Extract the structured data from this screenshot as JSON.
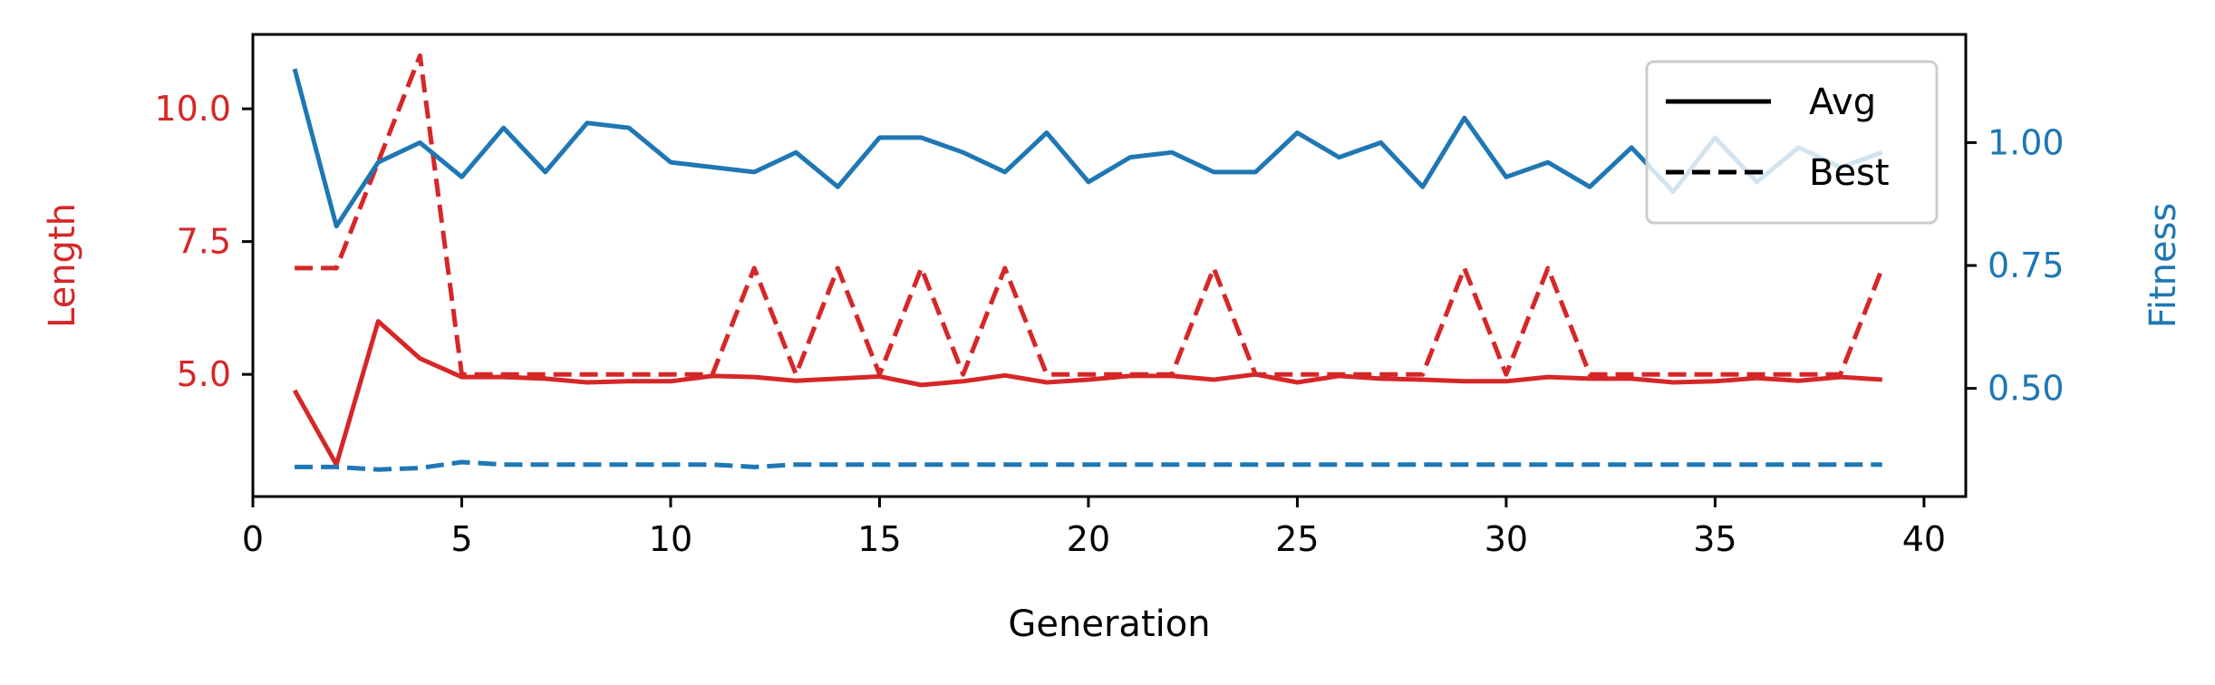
{
  "chart_data": {
    "type": "line",
    "xlabel": "Generation",
    "ylabel_left": "Length",
    "ylabel_right": "Fitness",
    "xlim": [
      0,
      41
    ],
    "ylim_left": [
      2.7,
      11.4
    ],
    "ylim_right": [
      0.28,
      1.22
    ],
    "xticks": [
      0,
      5,
      10,
      15,
      20,
      25,
      30,
      35,
      40
    ],
    "yticks_left": [
      5.0,
      7.5,
      10.0
    ],
    "yticks_right": [
      0.5,
      0.75,
      1.0
    ],
    "ytick_labels_left": [
      "5.0",
      "7.5",
      "10.0"
    ],
    "ytick_labels_right": [
      "0.50",
      "0.75",
      "1.00"
    ],
    "grid": false,
    "legend_position": "upper-right",
    "legend": [
      {
        "label": "Avg",
        "style": "solid"
      },
      {
        "label": "Best",
        "style": "dashed"
      }
    ],
    "colors": {
      "length": "#d62728",
      "fitness": "#1f77b4"
    },
    "x": [
      1,
      2,
      3,
      4,
      5,
      6,
      7,
      8,
      9,
      10,
      11,
      12,
      13,
      14,
      15,
      16,
      17,
      18,
      19,
      20,
      21,
      22,
      23,
      24,
      25,
      26,
      27,
      28,
      29,
      30,
      31,
      32,
      33,
      34,
      35,
      36,
      37,
      38,
      39
    ],
    "series": [
      {
        "axis": "left",
        "color": "length",
        "style": "solid",
        "values": [
          4.7,
          3.3,
          6.0,
          5.3,
          4.95,
          4.95,
          4.92,
          4.85,
          4.87,
          4.87,
          4.97,
          4.95,
          4.88,
          4.92,
          4.96,
          4.8,
          4.87,
          4.98,
          4.85,
          4.9,
          4.97,
          4.97,
          4.9,
          5.0,
          4.85,
          4.97,
          4.92,
          4.9,
          4.87,
          4.87,
          4.95,
          4.92,
          4.92,
          4.85,
          4.87,
          4.93,
          4.88,
          4.95,
          4.9
        ]
      },
      {
        "axis": "left",
        "color": "length",
        "style": "dashed",
        "values": [
          7.0,
          7.0,
          9.0,
          11.0,
          5.0,
          5.0,
          5.0,
          5.0,
          5.0,
          5.0,
          5.0,
          7.0,
          5.0,
          7.0,
          5.0,
          7.0,
          5.0,
          7.0,
          5.0,
          5.0,
          5.0,
          5.0,
          7.0,
          5.0,
          5.0,
          5.0,
          5.0,
          5.0,
          7.0,
          5.0,
          7.0,
          5.0,
          5.0,
          5.0,
          5.0,
          5.0,
          5.0,
          5.0,
          7.0
        ]
      },
      {
        "axis": "right",
        "color": "fitness",
        "style": "solid",
        "values": [
          1.15,
          0.83,
          0.96,
          1.0,
          0.93,
          1.03,
          0.94,
          1.04,
          1.03,
          0.96,
          0.95,
          0.94,
          0.98,
          0.91,
          1.01,
          1.01,
          0.98,
          0.94,
          1.02,
          0.92,
          0.97,
          0.98,
          0.94,
          0.94,
          1.02,
          0.97,
          1.0,
          0.91,
          1.05,
          0.93,
          0.96,
          0.91,
          0.99,
          0.9,
          1.01,
          0.92,
          0.99,
          0.95,
          0.98
        ]
      },
      {
        "axis": "right",
        "color": "fitness",
        "style": "dashed",
        "values": [
          0.34,
          0.34,
          0.335,
          0.338,
          0.35,
          0.345,
          0.345,
          0.345,
          0.345,
          0.345,
          0.345,
          0.34,
          0.345,
          0.345,
          0.345,
          0.345,
          0.345,
          0.345,
          0.345,
          0.345,
          0.345,
          0.345,
          0.345,
          0.345,
          0.345,
          0.345,
          0.345,
          0.345,
          0.345,
          0.345,
          0.345,
          0.345,
          0.345,
          0.345,
          0.345,
          0.345,
          0.345,
          0.345,
          0.345
        ]
      }
    ]
  }
}
